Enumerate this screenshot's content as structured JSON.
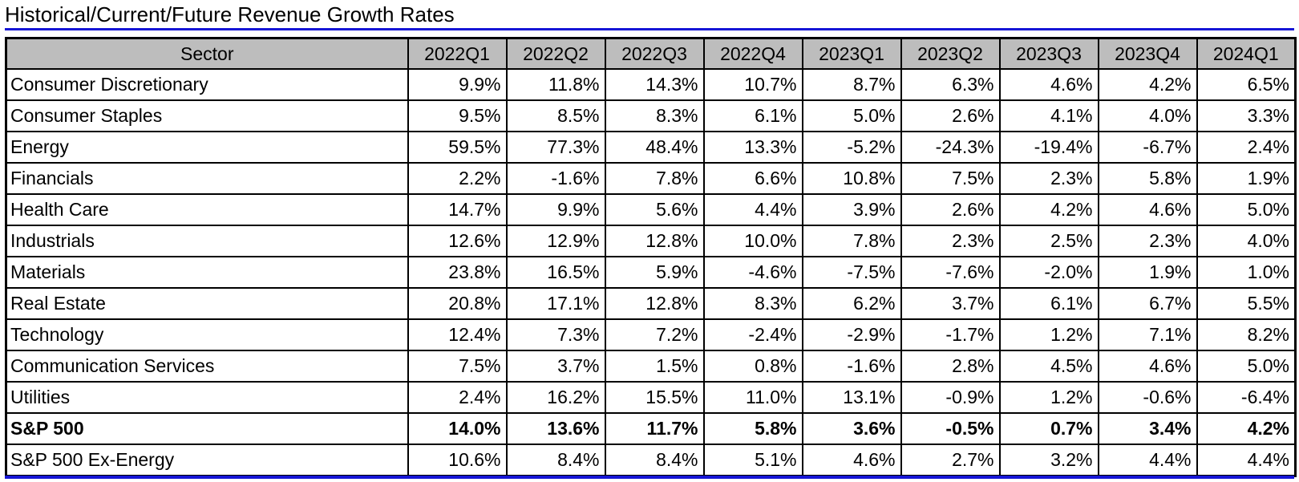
{
  "title": "Historical/Current/Future Revenue Growth Rates",
  "colors": {
    "rule": "#1616d6",
    "header_bg": "#bdbdbd",
    "border": "#000000"
  },
  "table": {
    "headers": [
      "Sector",
      "2022Q1",
      "2022Q2",
      "2022Q3",
      "2022Q4",
      "2023Q1",
      "2023Q2",
      "2023Q3",
      "2023Q4",
      "2024Q1"
    ],
    "rows": [
      {
        "sector": "Consumer Discretionary",
        "values": [
          "9.9%",
          "11.8%",
          "14.3%",
          "10.7%",
          "8.7%",
          "6.3%",
          "4.6%",
          "4.2%",
          "6.5%"
        ],
        "bold": false
      },
      {
        "sector": "Consumer Staples",
        "values": [
          "9.5%",
          "8.5%",
          "8.3%",
          "6.1%",
          "5.0%",
          "2.6%",
          "4.1%",
          "4.0%",
          "3.3%"
        ],
        "bold": false
      },
      {
        "sector": "Energy",
        "values": [
          "59.5%",
          "77.3%",
          "48.4%",
          "13.3%",
          "-5.2%",
          "-24.3%",
          "-19.4%",
          "-6.7%",
          "2.4%"
        ],
        "bold": false
      },
      {
        "sector": "Financials",
        "values": [
          "2.2%",
          "-1.6%",
          "7.8%",
          "6.6%",
          "10.8%",
          "7.5%",
          "2.3%",
          "5.8%",
          "1.9%"
        ],
        "bold": false
      },
      {
        "sector": "Health Care",
        "values": [
          "14.7%",
          "9.9%",
          "5.6%",
          "4.4%",
          "3.9%",
          "2.6%",
          "4.2%",
          "4.6%",
          "5.0%"
        ],
        "bold": false
      },
      {
        "sector": "Industrials",
        "values": [
          "12.6%",
          "12.9%",
          "12.8%",
          "10.0%",
          "7.8%",
          "2.3%",
          "2.5%",
          "2.3%",
          "4.0%"
        ],
        "bold": false
      },
      {
        "sector": "Materials",
        "values": [
          "23.8%",
          "16.5%",
          "5.9%",
          "-4.6%",
          "-7.5%",
          "-7.6%",
          "-2.0%",
          "1.9%",
          "1.0%"
        ],
        "bold": false
      },
      {
        "sector": "Real Estate",
        "values": [
          "20.8%",
          "17.1%",
          "12.8%",
          "8.3%",
          "6.2%",
          "3.7%",
          "6.1%",
          "6.7%",
          "5.5%"
        ],
        "bold": false
      },
      {
        "sector": "Technology",
        "values": [
          "12.4%",
          "7.3%",
          "7.2%",
          "-2.4%",
          "-2.9%",
          "-1.7%",
          "1.2%",
          "7.1%",
          "8.2%"
        ],
        "bold": false
      },
      {
        "sector": "Communication Services",
        "values": [
          "7.5%",
          "3.7%",
          "1.5%",
          "0.8%",
          "-1.6%",
          "2.8%",
          "4.5%",
          "4.6%",
          "5.0%"
        ],
        "bold": false
      },
      {
        "sector": "Utilities",
        "values": [
          "2.4%",
          "16.2%",
          "15.5%",
          "11.0%",
          "13.1%",
          "-0.9%",
          "1.2%",
          "-0.6%",
          "-6.4%"
        ],
        "bold": false
      },
      {
        "sector": "S&P 500",
        "values": [
          "14.0%",
          "13.6%",
          "11.7%",
          "5.8%",
          "3.6%",
          "-0.5%",
          "0.7%",
          "3.4%",
          "4.2%"
        ],
        "bold": true
      },
      {
        "sector": "S&P 500 Ex-Energy",
        "values": [
          "10.6%",
          "8.4%",
          "8.4%",
          "5.1%",
          "4.6%",
          "2.7%",
          "3.2%",
          "4.4%",
          "4.4%"
        ],
        "bold": false
      }
    ]
  }
}
